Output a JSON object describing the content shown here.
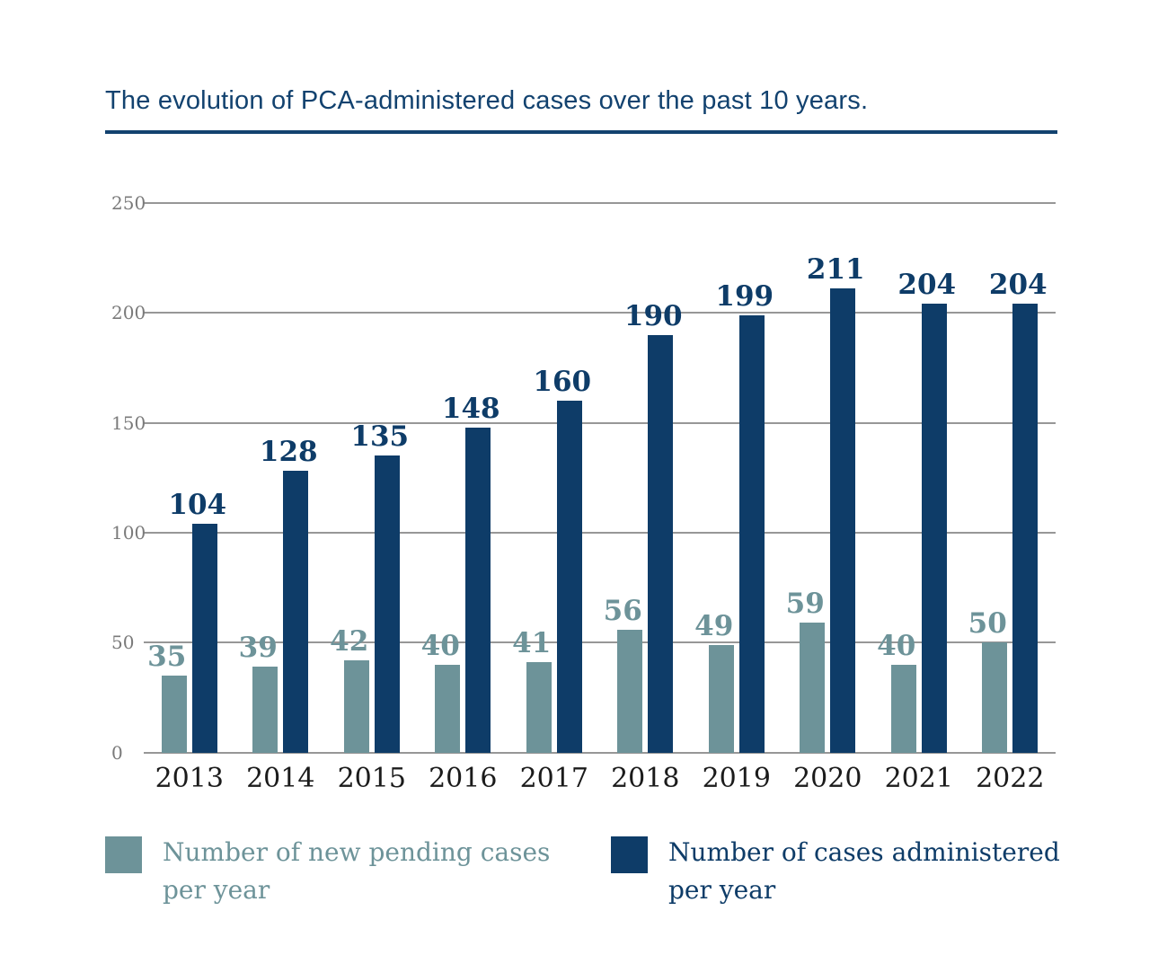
{
  "title": "The evolution of PCA-administered cases over the past 10 years.",
  "colors": {
    "navy": "#0e3c68",
    "teal": "#6d9399",
    "title": "#12426f",
    "grid": "#979797",
    "tick_text": "#7a7a7a",
    "year_text": "#1b1b1b"
  },
  "chart_data": {
    "type": "bar",
    "title": "The evolution of PCA-administered cases over the past 10 years.",
    "categories": [
      "2013",
      "2014",
      "2015",
      "2016",
      "2017",
      "2018",
      "2019",
      "2020",
      "2021",
      "2022"
    ],
    "series": [
      {
        "name": "Number of new pending cases per year",
        "label": "Number of new pending cases\nper year",
        "color": "#6d9399",
        "values": [
          35,
          39,
          42,
          40,
          41,
          56,
          49,
          59,
          40,
          50
        ]
      },
      {
        "name": "Number of cases administered per year",
        "label": "Number of cases administered\nper year",
        "color": "#0e3c68",
        "values": [
          104,
          128,
          135,
          148,
          160,
          190,
          199,
          211,
          204,
          204
        ]
      }
    ],
    "xlabel": "",
    "ylabel": "",
    "ylim": [
      0,
      250
    ],
    "yticks": [
      0,
      50,
      100,
      150,
      200,
      250
    ],
    "grid": "horizontal",
    "legend_position": "bottom",
    "data_labels": true
  }
}
